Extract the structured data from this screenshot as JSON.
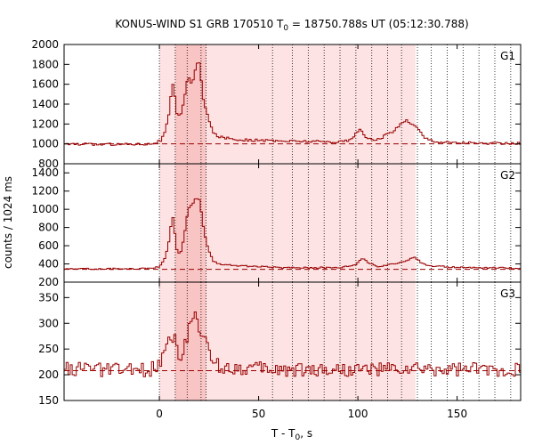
{
  "chart_data": {
    "type": "line",
    "title_main": "KONUS-WIND S1 GRB 170510 T",
    "title_sub": "0",
    "title_rest": " = 18750.788s UT (05:12:30.788)",
    "xlabel_main": "T - T",
    "xlabel_sub": "0",
    "xlabel_rest": ", s",
    "ylabel": "counts / 1024 ms",
    "xlim": [
      -48,
      182
    ],
    "x_ticks": [
      0,
      50,
      100,
      150
    ],
    "x_tick_labels": [
      "0",
      "50",
      "100",
      "150"
    ],
    "dotted_lines": [
      0,
      8,
      14,
      21,
      23.5,
      57,
      67,
      75,
      83,
      91,
      99,
      107,
      115,
      122,
      130,
      137,
      145,
      153,
      161,
      169,
      177
    ],
    "shade_light": [
      0,
      129
    ],
    "shade_dark": [
      8,
      23.5
    ],
    "colors": {
      "line": "#990000",
      "shade_light": "#fde3e3",
      "shade_dark": "#f9c4c4",
      "dash": "#990000"
    },
    "panels": [
      {
        "name": "G1",
        "ylim": [
          800,
          2000
        ],
        "y_ticks": [
          800,
          1000,
          1200,
          1400,
          1600,
          1800,
          2000
        ],
        "y_tick_labels": [
          "800",
          "1000",
          "1200",
          "1400",
          "1600",
          "1800",
          "2000"
        ],
        "background": 1000,
        "profile": [
          [
            -48,
            1000
          ],
          [
            -30,
            995
          ],
          [
            -5,
            1000
          ],
          [
            0,
            1030
          ],
          [
            2,
            1100
          ],
          [
            4,
            1250
          ],
          [
            6,
            1600
          ],
          [
            7,
            1560
          ],
          [
            8,
            1300
          ],
          [
            10,
            1280
          ],
          [
            12,
            1450
          ],
          [
            14,
            1700
          ],
          [
            16,
            1580
          ],
          [
            18,
            1800
          ],
          [
            20,
            1820
          ],
          [
            21,
            1500
          ],
          [
            23,
            1350
          ],
          [
            25,
            1200
          ],
          [
            27,
            1100
          ],
          [
            30,
            1070
          ],
          [
            40,
            1040
          ],
          [
            60,
            1030
          ],
          [
            90,
            1020
          ],
          [
            96,
            1040
          ],
          [
            98,
            1090
          ],
          [
            101,
            1150
          ],
          [
            103,
            1080
          ],
          [
            106,
            1040
          ],
          [
            111,
            1050
          ],
          [
            114,
            1100
          ],
          [
            118,
            1130
          ],
          [
            120,
            1180
          ],
          [
            124,
            1240
          ],
          [
            127,
            1200
          ],
          [
            130,
            1150
          ],
          [
            133,
            1060
          ],
          [
            140,
            1020
          ],
          [
            160,
            1005
          ],
          [
            182,
            1005
          ]
        ],
        "noise": 12
      },
      {
        "name": "G2",
        "ylim": [
          200,
          1500
        ],
        "y_ticks": [
          200,
          400,
          600,
          800,
          1000,
          1200,
          1400
        ],
        "y_tick_labels": [
          "200",
          "400",
          "600",
          "800",
          "1000",
          "1200",
          "1400"
        ],
        "background": 340,
        "profile": [
          [
            -48,
            345
          ],
          [
            -10,
            348
          ],
          [
            -2,
            360
          ],
          [
            0,
            380
          ],
          [
            2,
            450
          ],
          [
            4,
            600
          ],
          [
            6,
            950
          ],
          [
            7,
            800
          ],
          [
            8,
            560
          ],
          [
            10,
            500
          ],
          [
            12,
            700
          ],
          [
            14,
            1000
          ],
          [
            16,
            1050
          ],
          [
            18,
            1130
          ],
          [
            20,
            1100
          ],
          [
            21,
            900
          ],
          [
            22,
            750
          ],
          [
            24,
            560
          ],
          [
            27,
            420
          ],
          [
            30,
            400
          ],
          [
            40,
            380
          ],
          [
            60,
            360
          ],
          [
            90,
            360
          ],
          [
            98,
            390
          ],
          [
            102,
            470
          ],
          [
            105,
            410
          ],
          [
            110,
            370
          ],
          [
            118,
            400
          ],
          [
            124,
            440
          ],
          [
            128,
            480
          ],
          [
            131,
            420
          ],
          [
            135,
            380
          ],
          [
            150,
            360
          ],
          [
            182,
            355
          ]
        ],
        "noise": 8
      },
      {
        "name": "G3",
        "ylim": [
          150,
          380
        ],
        "y_ticks": [
          150,
          200,
          250,
          300,
          350
        ],
        "y_tick_labels": [
          "150",
          "200",
          "250",
          "300",
          "350"
        ],
        "background": 208,
        "profile": [
          [
            -48,
            212
          ],
          [
            -20,
            208
          ],
          [
            -5,
            210
          ],
          [
            0,
            225
          ],
          [
            2,
            260
          ],
          [
            5,
            275
          ],
          [
            7,
            270
          ],
          [
            9,
            235
          ],
          [
            12,
            250
          ],
          [
            15,
            300
          ],
          [
            18,
            310
          ],
          [
            21,
            280
          ],
          [
            23,
            260
          ],
          [
            26,
            230
          ],
          [
            30,
            215
          ],
          [
            60,
            210
          ],
          [
            120,
            210
          ],
          [
            182,
            210
          ]
        ],
        "noise": 14
      }
    ]
  }
}
